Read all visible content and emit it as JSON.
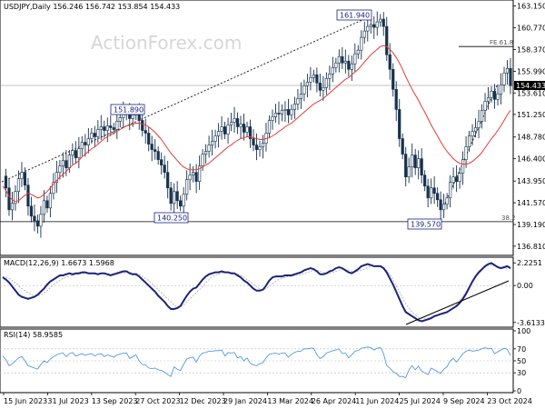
{
  "watermark": "ActionForex.com",
  "chart_data": [
    {
      "type": "candlestick",
      "title": "USDJPY,Daily  156.246 156.742 153.854 154.433",
      "ylim": [
        136.0,
        163.5
      ],
      "y_ticks": [
        "163.150",
        "160.770",
        "158.370",
        "155.990",
        "153.610",
        "151.250",
        "148.780",
        "146.400",
        "143.950",
        "141.570",
        "139.190",
        "136.810"
      ],
      "last_price": "154.433",
      "x_ticks": [
        "15 Jun 2023",
        "31 Jul 2023",
        "13 Sep 2023",
        "27 Oct 2023",
        "12 Dec 2023",
        "29 Jan 2024",
        "13 Mar 2024",
        "26 Apr 2024",
        "11 Jun 2024",
        "25 Jul 2024",
        "9 Sep 2024",
        "23 Oct 2024"
      ],
      "annotations": [
        {
          "label": "161.940",
          "value": 161.94
        },
        {
          "label": "151.890",
          "value": 151.89
        },
        {
          "label": "140.250",
          "value": 140.25
        },
        {
          "label": "139.570",
          "value": 139.57
        }
      ],
      "fib_levels": [
        {
          "label": "FE 61.8",
          "value": 158.7
        },
        {
          "label": "38.2",
          "value": 139.5
        }
      ],
      "close_series": [
        144.5,
        143.2,
        140.8,
        141.5,
        142.8,
        144.2,
        144.9,
        143.5,
        141.2,
        140.1,
        139.6,
        139.0,
        140.3,
        141.8,
        141.0,
        142.6,
        143.8,
        144.9,
        145.6,
        146.2,
        145.4,
        146.8,
        147.3,
        146.5,
        147.5,
        148.2,
        147.9,
        148.6,
        149.2,
        148.8,
        149.6,
        149.9,
        149.5,
        150.0,
        149.8,
        149.6,
        150.5,
        150.9,
        151.4,
        151.6,
        150.8,
        151.2,
        151.7,
        150.6,
        149.5,
        149.2,
        148.0,
        147.4,
        147.2,
        146.3,
        145.7,
        144.9,
        143.2,
        141.5,
        142.8,
        141.8,
        141.2,
        142.5,
        144.1,
        144.6,
        144.9,
        143.9,
        145.6,
        146.9,
        147.2,
        147.9,
        148.3,
        148.9,
        149.4,
        149.9,
        149.1,
        150.1,
        150.4,
        150.8,
        149.9,
        150.2,
        149.3,
        149.9,
        148.6,
        147.9,
        147.4,
        147.7,
        148.1,
        149.2,
        150.6,
        151.0,
        151.4,
        151.3,
        151.7,
        151.8,
        151.2,
        151.8,
        152.4,
        153.0,
        153.5,
        154.4,
        154.8,
        155.3,
        155.6,
        154.7,
        153.9,
        154.2,
        155.2,
        155.7,
        156.4,
        156.9,
        157.6,
        156.9,
        157.1,
        156.2,
        156.8,
        157.9,
        158.3,
        159.7,
        160.4,
        160.9,
        161.1,
        160.8,
        161.4,
        161.7,
        160.9,
        157.8,
        156.2,
        154.0,
        151.8,
        148.6,
        146.9,
        144.4,
        145.5,
        146.8,
        145.4,
        146.4,
        144.6,
        143.4,
        142.1,
        143.2,
        142.6,
        141.9,
        140.8,
        141.4,
        142.1,
        143.8,
        144.4,
        143.9,
        144.8,
        146.3,
        147.7,
        148.9,
        149.4,
        149.8,
        150.5,
        151.7,
        152.7,
        153.1,
        153.8,
        152.9,
        153.5,
        154.5,
        155.8,
        156.3,
        154.4
      ],
      "ma_series": [
        143.4,
        142.9,
        142.3,
        141.9,
        141.7,
        141.8,
        142.1,
        142.4,
        142.6,
        142.5,
        142.3,
        142.1,
        142.2,
        142.5,
        142.8,
        143.2,
        143.6,
        144.0,
        144.4,
        144.7,
        145.0,
        145.4,
        145.7,
        145.9,
        146.2,
        146.6,
        146.9,
        147.2,
        147.5,
        147.7,
        148.0,
        148.3,
        148.6,
        148.8,
        149.0,
        149.2,
        149.4,
        149.6,
        149.8,
        150.0,
        150.1,
        150.2,
        150.3,
        150.3,
        150.2,
        150.1,
        149.9,
        149.6,
        149.3,
        148.9,
        148.5,
        148.0,
        147.5,
        147.0,
        146.6,
        146.2,
        145.8,
        145.5,
        145.3,
        145.2,
        145.2,
        145.2,
        145.3,
        145.5,
        145.7,
        145.9,
        146.2,
        146.5,
        146.8,
        147.1,
        147.4,
        147.7,
        147.9,
        148.2,
        148.4,
        148.6,
        148.7,
        148.8,
        148.8,
        148.7,
        148.6,
        148.5,
        148.5,
        148.6,
        148.7,
        148.9,
        149.1,
        149.4,
        149.6,
        149.9,
        150.1,
        150.3,
        150.6,
        150.9,
        151.2,
        151.5,
        151.8,
        152.1,
        152.4,
        152.6,
        152.8,
        153.0,
        153.3,
        153.6,
        153.9,
        154.2,
        154.5,
        154.8,
        155.1,
        155.3,
        155.6,
        155.9,
        156.2,
        156.6,
        157.0,
        157.4,
        157.8,
        158.1,
        158.4,
        158.7,
        158.8,
        158.7,
        158.4,
        158.0,
        157.5,
        156.9,
        156.2,
        155.4,
        154.7,
        154.0,
        153.4,
        152.8,
        152.1,
        151.5,
        150.8,
        150.1,
        149.5,
        148.9,
        148.3,
        147.7,
        147.2,
        146.8,
        146.4,
        146.1,
        145.9,
        145.8,
        145.8,
        145.9,
        146.1,
        146.4,
        146.7,
        147.1,
        147.6,
        148.1,
        148.6,
        149.0,
        149.5,
        150.0,
        150.6,
        151.2,
        151.7
      ]
    },
    {
      "type": "line",
      "title": "MACD(12,26,9) 1.6673 1.5968",
      "ylim": [
        -3.9,
        2.6
      ],
      "y_ticks": [
        "2.2251",
        "0.00",
        "-3.6133"
      ],
      "macd_series": [
        0.8,
        0.6,
        0.3,
        -0.1,
        -0.5,
        -0.9,
        -1.1,
        -1.2,
        -1.3,
        -1.2,
        -1.1,
        -0.9,
        -0.6,
        -0.3,
        0.1,
        0.4,
        0.6,
        0.8,
        1.0,
        1.0,
        1.1,
        1.2,
        1.1,
        1.2,
        1.2,
        1.3,
        1.3,
        1.2,
        1.2,
        1.2,
        1.1,
        1.2,
        1.2,
        1.1,
        1.0,
        1.1,
        1.2,
        1.3,
        1.4,
        1.4,
        1.2,
        1.1,
        1.1,
        0.9,
        0.6,
        0.3,
        0.0,
        -0.3,
        -0.6,
        -1.0,
        -1.3,
        -1.6,
        -2.0,
        -2.3,
        -2.3,
        -2.2,
        -2.0,
        -1.5,
        -1.0,
        -0.6,
        -0.3,
        -0.2,
        0.2,
        0.6,
        0.9,
        1.1,
        1.2,
        1.3,
        1.3,
        1.4,
        1.3,
        1.3,
        1.2,
        1.2,
        1.0,
        0.8,
        0.5,
        0.3,
        0.0,
        -0.3,
        -0.5,
        -0.5,
        -0.4,
        0.0,
        0.5,
        0.8,
        0.9,
        0.9,
        0.9,
        1.0,
        1.0,
        1.0,
        1.1,
        1.2,
        1.3,
        1.5,
        1.6,
        1.7,
        1.6,
        1.4,
        1.1,
        1.1,
        1.2,
        1.4,
        1.5,
        1.7,
        1.8,
        1.7,
        1.5,
        1.3,
        1.2,
        1.4,
        1.6,
        1.9,
        2.0,
        2.1,
        2.0,
        1.9,
        1.9,
        1.9,
        1.7,
        1.3,
        0.7,
        0.1,
        -0.6,
        -1.3,
        -2.0,
        -2.6,
        -2.8,
        -3.0,
        -3.2,
        -3.4,
        -3.5,
        -3.4,
        -3.3,
        -3.2,
        -3.0,
        -2.9,
        -2.8,
        -2.7,
        -2.6,
        -2.4,
        -2.2,
        -2.0,
        -1.7,
        -1.3,
        -0.8,
        -0.2,
        0.4,
        0.9,
        1.3,
        1.6,
        1.9,
        2.1,
        2.2,
        2.0,
        1.8,
        1.7,
        1.8,
        1.9,
        1.7
      ],
      "signal_series": [
        0.9,
        0.8,
        0.7,
        0.5,
        0.3,
        0.0,
        -0.3,
        -0.5,
        -0.7,
        -0.9,
        -1.0,
        -1.0,
        -0.9,
        -0.7,
        -0.5,
        -0.2,
        0.1,
        0.3,
        0.5,
        0.7,
        0.8,
        0.9,
        1.0,
        1.1,
        1.1,
        1.2,
        1.2,
        1.2,
        1.2,
        1.2,
        1.2,
        1.2,
        1.2,
        1.2,
        1.1,
        1.1,
        1.1,
        1.2,
        1.2,
        1.3,
        1.3,
        1.2,
        1.2,
        1.1,
        0.9,
        0.7,
        0.5,
        0.2,
        -0.1,
        -0.4,
        -0.7,
        -1.0,
        -1.3,
        -1.6,
        -1.9,
        -2.1,
        -2.1,
        -1.9,
        -1.6,
        -1.3,
        -1.0,
        -0.7,
        -0.4,
        -0.1,
        0.3,
        0.6,
        0.9,
        1.0,
        1.1,
        1.2,
        1.3,
        1.3,
        1.3,
        1.2,
        1.1,
        1.0,
        0.8,
        0.6,
        0.4,
        0.1,
        -0.1,
        -0.3,
        -0.4,
        -0.3,
        -0.1,
        0.2,
        0.4,
        0.6,
        0.7,
        0.8,
        0.9,
        0.9,
        1.0,
        1.0,
        1.1,
        1.2,
        1.3,
        1.4,
        1.5,
        1.5,
        1.4,
        1.3,
        1.2,
        1.2,
        1.3,
        1.4,
        1.5,
        1.6,
        1.6,
        1.5,
        1.4,
        1.3,
        1.4,
        1.5,
        1.6,
        1.8,
        1.9,
        1.9,
        1.9,
        1.9,
        1.8,
        1.5,
        1.1,
        0.6,
        0.0,
        -0.6,
        -1.2,
        -1.8,
        -2.2,
        -2.6,
        -2.9,
        -3.1,
        -3.2,
        -3.2,
        -3.2,
        -3.1,
        -3.0,
        -2.9,
        -2.8,
        -2.7,
        -2.6,
        -2.4,
        -2.2,
        -1.9,
        -1.5,
        -1.1,
        -0.6,
        -0.1,
        0.4,
        0.9,
        1.2,
        1.5,
        1.8,
        1.9,
        2.0,
        1.9,
        1.8,
        1.8,
        1.8,
        1.6
      ]
    },
    {
      "type": "line",
      "title": "RSI(14) 58.9585",
      "ylim": [
        0,
        100
      ],
      "y_ticks": [
        "100",
        "70",
        "50",
        "30",
        "0"
      ],
      "rsi_series": [
        58,
        52,
        42,
        45,
        50,
        55,
        57,
        50,
        42,
        40,
        38,
        36,
        44,
        50,
        47,
        53,
        57,
        60,
        62,
        63,
        57,
        62,
        64,
        58,
        60,
        62,
        59,
        61,
        62,
        58,
        61,
        62,
        57,
        60,
        58,
        56,
        60,
        61,
        63,
        63,
        54,
        57,
        60,
        50,
        44,
        43,
        38,
        37,
        38,
        35,
        34,
        31,
        27,
        24,
        40,
        36,
        34,
        44,
        53,
        55,
        56,
        48,
        58,
        63,
        64,
        66,
        66,
        67,
        67,
        68,
        58,
        64,
        63,
        64,
        55,
        57,
        50,
        55,
        46,
        43,
        42,
        45,
        47,
        55,
        61,
        62,
        63,
        61,
        63,
        63,
        56,
        61,
        64,
        66,
        66,
        70,
        70,
        71,
        71,
        60,
        54,
        57,
        63,
        65,
        67,
        68,
        70,
        62,
        63,
        55,
        60,
        66,
        67,
        71,
        72,
        73,
        72,
        68,
        71,
        72,
        62,
        42,
        38,
        32,
        29,
        24,
        24,
        22,
        35,
        42,
        35,
        41,
        33,
        30,
        27,
        38,
        35,
        32,
        29,
        36,
        40,
        50,
        54,
        48,
        55,
        62,
        66,
        68,
        66,
        67,
        68,
        70,
        72,
        70,
        71,
        62,
        65,
        68,
        71,
        69,
        59
      ]
    }
  ]
}
